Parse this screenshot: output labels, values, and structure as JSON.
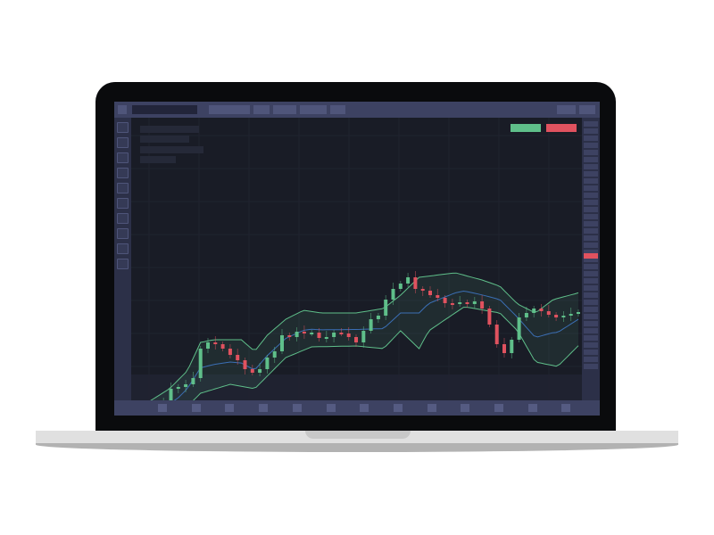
{
  "colors": {
    "up": "#5fbf8a",
    "down": "#e0525f",
    "band": "#5fbf8a",
    "middle": "#3b6fb5",
    "background": "#191c26",
    "panel": "#3d4262"
  },
  "icons": {
    "toolbar": "tool-square-icon",
    "buy": "buy-button",
    "sell": "sell-button"
  },
  "chart_data": {
    "type": "candlestick",
    "closes": [
      85,
      90,
      92,
      102,
      115,
      130,
      132,
      135,
      142,
      175,
      182,
      180,
      175,
      168,
      162,
      152,
      148,
      152,
      165,
      172,
      190,
      188,
      194,
      192,
      193,
      187,
      188,
      193,
      192,
      188,
      182,
      195,
      208,
      212,
      230,
      242,
      248,
      255,
      242,
      240,
      235,
      232,
      226,
      225,
      227,
      225,
      228,
      220,
      202,
      180,
      170,
      185,
      210,
      215,
      220,
      217,
      213,
      210,
      212,
      214,
      216
    ],
    "upper_band": [
      [
        0,
        105
      ],
      [
        4.8,
        130
      ],
      [
        7.2,
        150
      ],
      [
        9,
        182
      ],
      [
        10.8,
        185
      ],
      [
        14.5,
        185
      ],
      [
        16.3,
        172
      ],
      [
        18,
        190
      ],
      [
        20.5,
        208
      ],
      [
        22.9,
        218
      ],
      [
        25.3,
        215
      ],
      [
        30,
        215
      ],
      [
        33.7,
        220
      ],
      [
        36,
        235
      ],
      [
        38.5,
        255
      ],
      [
        43.4,
        260
      ],
      [
        47,
        252
      ],
      [
        49.4,
        245
      ],
      [
        51.8,
        225
      ],
      [
        54.2,
        215
      ],
      [
        56.6,
        230
      ],
      [
        60.2,
        238
      ]
    ],
    "lower_band": [
      [
        0,
        80
      ],
      [
        6,
        100
      ],
      [
        9,
        125
      ],
      [
        13,
        135
      ],
      [
        16.3,
        130
      ],
      [
        20.5,
        165
      ],
      [
        24,
        177
      ],
      [
        30,
        178
      ],
      [
        33.7,
        175
      ],
      [
        36,
        195
      ],
      [
        38.5,
        175
      ],
      [
        39.8,
        195
      ],
      [
        44.6,
        222
      ],
      [
        49.4,
        215
      ],
      [
        51.8,
        195
      ],
      [
        54.2,
        160
      ],
      [
        57.2,
        155
      ],
      [
        60.2,
        180
      ]
    ]
  }
}
